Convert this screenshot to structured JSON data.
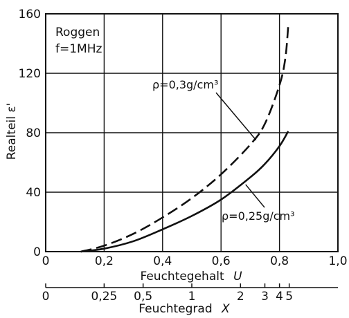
{
  "chart_data": {
    "type": "line",
    "title": "",
    "inset_text": [
      "Roggen",
      "f=1MHz"
    ],
    "xlabel": "Feuchtegehalt",
    "xlabel_symbol": "U",
    "x2label": "Feuchtegrad",
    "x2label_symbol": "X",
    "ylabel": "Realteil ε'",
    "xlim": [
      0,
      1.0
    ],
    "ylim": [
      0,
      160
    ],
    "xticks": [
      0,
      0.2,
      0.4,
      0.6,
      0.8,
      1.0
    ],
    "xtick_labels": [
      "0",
      "0,2",
      "0,4",
      "0,6",
      "0,8",
      "1,0"
    ],
    "yticks": [
      0,
      40,
      80,
      120,
      160
    ],
    "ytick_labels": [
      "0",
      "40",
      "80",
      "120",
      "160"
    ],
    "x2ticks": [
      0,
      0.25,
      0.5,
      1,
      2,
      3,
      4,
      5
    ],
    "x2tick_labels": [
      "0",
      "0,25",
      "0,5",
      "1",
      "2",
      "3",
      "4",
      "5"
    ],
    "grid": true,
    "series": [
      {
        "name": "ρ=0,3g/cm³",
        "style": "dashed",
        "x": [
          0.12,
          0.2,
          0.3,
          0.4,
          0.5,
          0.6,
          0.7,
          0.75,
          0.8,
          0.82,
          0.83
        ],
        "y": [
          0,
          4,
          12,
          23,
          36,
          52,
          72,
          86,
          112,
          130,
          152
        ]
      },
      {
        "name": "ρ=0,25g/cm³",
        "style": "solid",
        "x": [
          0.12,
          0.2,
          0.3,
          0.4,
          0.5,
          0.6,
          0.7,
          0.75,
          0.8,
          0.83
        ],
        "y": [
          0,
          2,
          7,
          15,
          24,
          35,
          50,
          59,
          71,
          81
        ]
      }
    ],
    "annotations": [
      {
        "text": "ρ=0,3g/cm³",
        "series": 0,
        "arrow_to": {
          "x": 0.72,
          "y": 75
        }
      },
      {
        "text": "ρ=0,25g/cm³",
        "series": 1,
        "arrow_to": {
          "x": 0.67,
          "y": 47
        }
      }
    ]
  }
}
